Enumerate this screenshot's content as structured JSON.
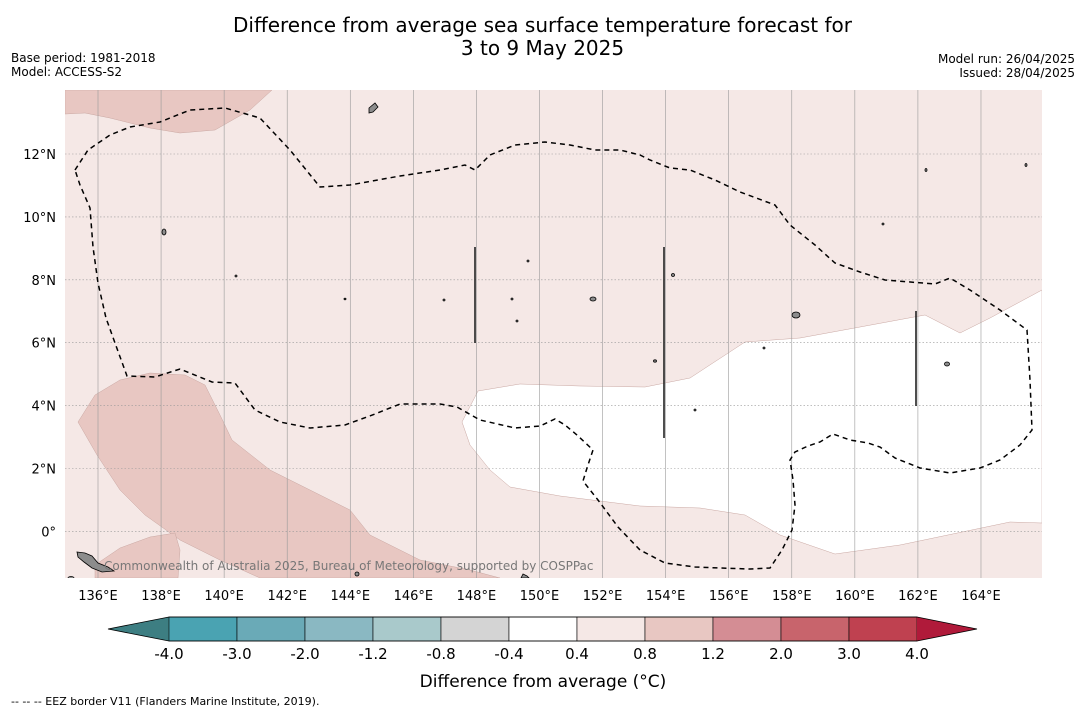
{
  "title": {
    "line1": "Difference from average sea surface temperature forecast for",
    "line2": "3 to 9 May 2025"
  },
  "meta": {
    "base_period": "Base period: 1981-2018",
    "model": "Model: ACCESS-S2",
    "model_run": "Model run: 26/04/2025",
    "issued": "Issued: 28/04/2025"
  },
  "map": {
    "lon_ticks": [
      "136°E",
      "138°E",
      "140°E",
      "142°E",
      "144°E",
      "146°E",
      "148°E",
      "150°E",
      "152°E",
      "154°E",
      "156°E",
      "158°E",
      "160°E",
      "162°E",
      "164°E"
    ],
    "lat_ticks": [
      "12°N",
      "10°N",
      "8°N",
      "6°N",
      "4°N",
      "2°N",
      "0°"
    ],
    "copyright": "Commonwealth of Australia 2025, Bureau of Meteorology, supported by COSPPac",
    "colors": {
      "band_04_08": "#f5e8e6",
      "band_08_12": "#e8c7c2",
      "neutral": "#ffffff",
      "land": "#8c8c8c"
    }
  },
  "colorbar": {
    "label": "Difference from average (°C)",
    "ticks": [
      "-4.0",
      "-3.0",
      "-2.0",
      "-1.2",
      "-0.8",
      "-0.4",
      "0.4",
      "0.8",
      "1.2",
      "2.0",
      "3.0",
      "4.0"
    ],
    "low_extend_color": "#3d7e82",
    "high_extend_color": "#b01a3a",
    "colors": [
      "#4aa3b2",
      "#6aaab7",
      "#8ab8c2",
      "#a9c9cb",
      "#d4d4d4",
      "#ffffff",
      "#f5e8e6",
      "#e8c7c2",
      "#d48d94",
      "#c8646c",
      "#bf4150"
    ]
  },
  "footer": "--  --  -- EEZ border V11 (Flanders Marine Institute, 2019)."
}
